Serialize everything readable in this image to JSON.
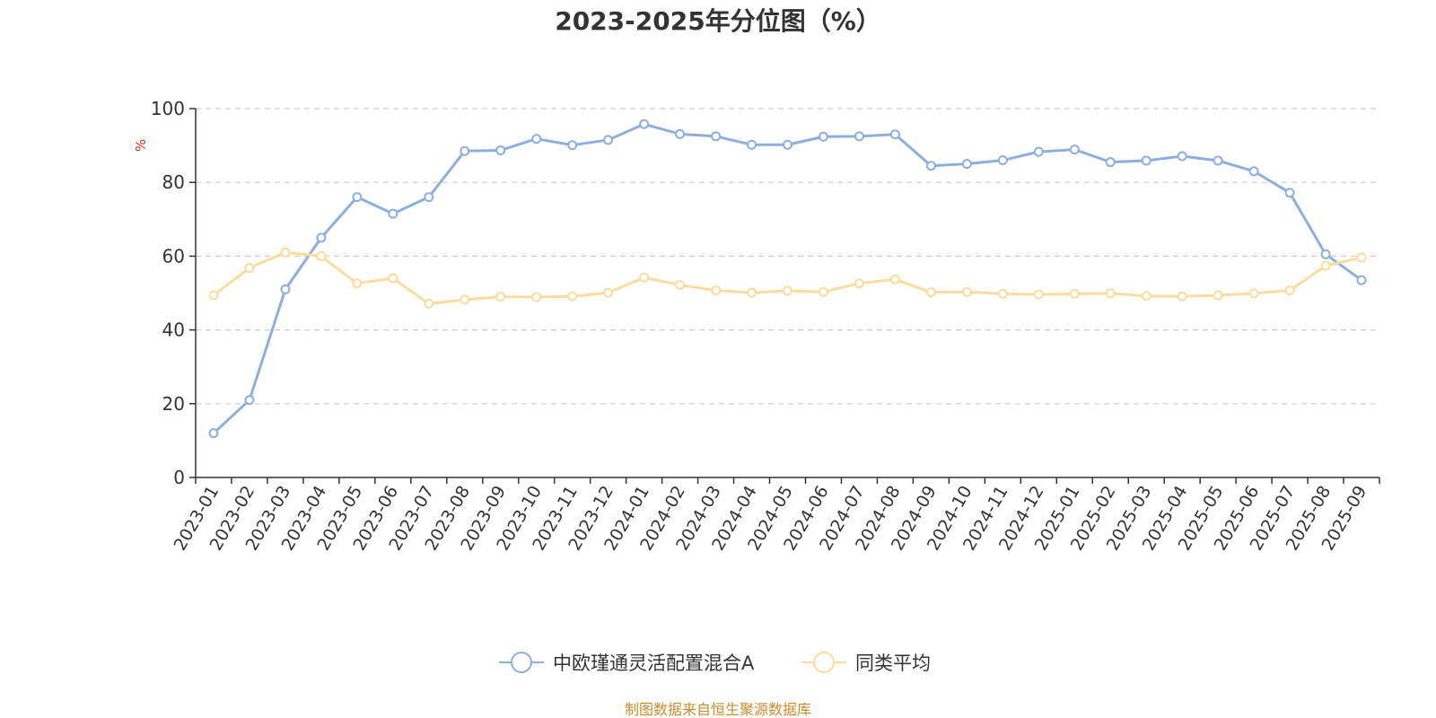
{
  "chart_data": {
    "type": "line",
    "title": "2023-2025年分位图（%）",
    "ylabel": "%",
    "ylim": [
      0,
      100
    ],
    "yticks": [
      "0",
      "20",
      "40",
      "60",
      "80",
      "100"
    ],
    "grid": true,
    "legend_position": "bottom-center",
    "categories": [
      "2023-01",
      "2023-02",
      "2023-03",
      "2023-04",
      "2023-05",
      "2023-06",
      "2023-07",
      "2023-08",
      "2023-09",
      "2023-10",
      "2023-11",
      "2023-12",
      "2024-01",
      "2024-02",
      "2024-03",
      "2024-04",
      "2024-05",
      "2024-06",
      "2024-07",
      "2024-08",
      "2024-09",
      "2024-10",
      "2024-11",
      "2024-12",
      "2025-01",
      "2025-02",
      "2025-03",
      "2025-04",
      "2025-05",
      "2025-06",
      "2025-07",
      "2025-08",
      "2025-09"
    ],
    "series": [
      {
        "name": "中欧瑾通灵活配置混合A",
        "color": "#8eaedb",
        "values": [
          12,
          21,
          51,
          65,
          76,
          71.5,
          76,
          88.5,
          88.7,
          91.8,
          90.1,
          91.5,
          95.8,
          93.1,
          92.5,
          90.2,
          90.2,
          92.4,
          92.5,
          93,
          84.5,
          85,
          86,
          88.3,
          88.9,
          85.5,
          85.9,
          87.1,
          85.9,
          83,
          77.2,
          60.5,
          53.5
        ]
      },
      {
        "name": "同类平均",
        "color": "#fadc9e",
        "values": [
          49.4,
          56.8,
          61,
          60,
          52.6,
          54,
          47.1,
          48.2,
          49,
          48.9,
          49.1,
          50.1,
          54.2,
          52.2,
          50.7,
          50.1,
          50.6,
          50.3,
          52.6,
          53.7,
          50.2,
          50.3,
          49.8,
          49.6,
          49.8,
          49.9,
          49.2,
          49.1,
          49.4,
          49.9,
          50.7,
          57.4,
          59.6
        ]
      }
    ]
  },
  "footer": {
    "source": "制图数据来自恒生聚源数据库"
  }
}
